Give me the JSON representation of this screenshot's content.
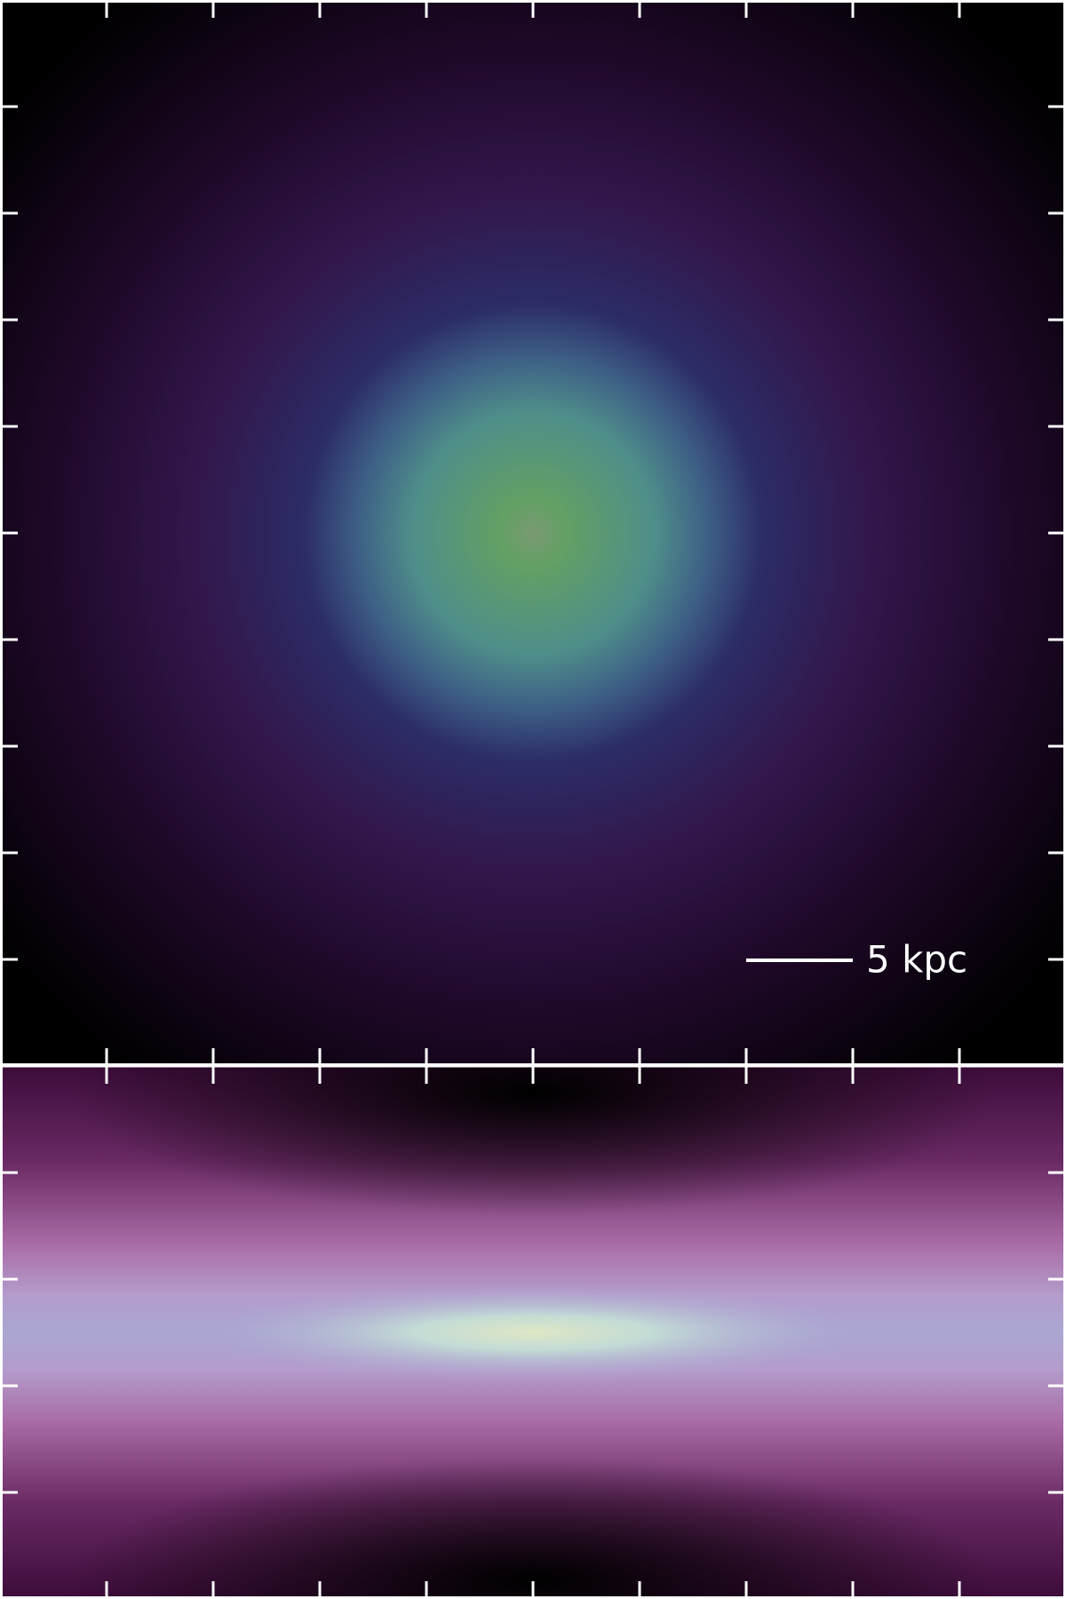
{
  "scale_bar": {
    "label": "5 kpc"
  }
}
